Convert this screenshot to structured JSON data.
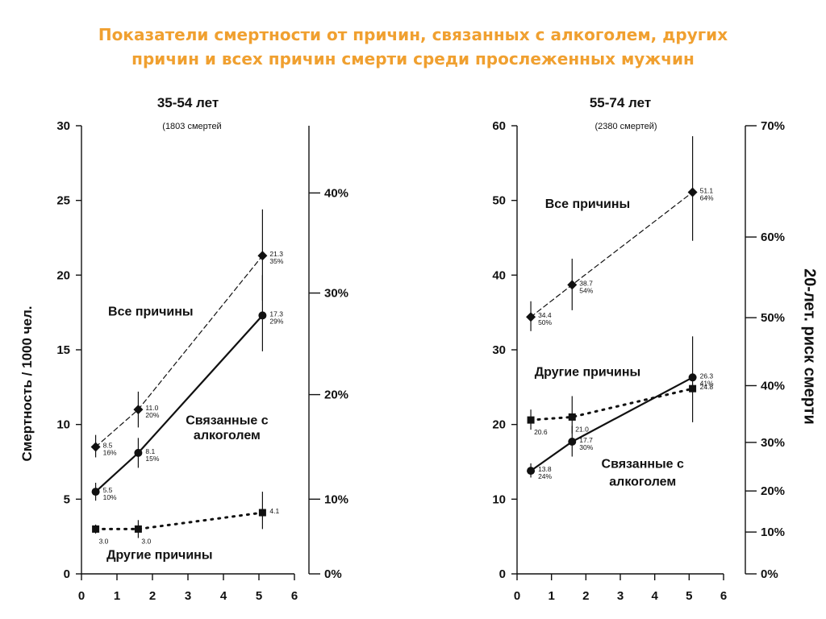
{
  "title_line1": "Показатели смертности от причин, связанных с алкоголем, других",
  "title_line2": "причин и всех причин смерти среди прослеженных мужчин",
  "ylabel_left": "Смертность / 1000 чел.",
  "ylabel_right": "20-лет. риск смерти",
  "colors": {
    "title": "#f0a030",
    "ink": "#111111"
  },
  "chart_data": [
    {
      "type": "line",
      "title": "35-54 лет",
      "subtitle": "(1803 смертей",
      "ylim": [
        0,
        30
      ],
      "yticks": [
        "0",
        "5",
        "10",
        "15",
        "20",
        "25",
        "30"
      ],
      "xlim": [
        0,
        6
      ],
      "xticks": [
        "0",
        "1",
        "2",
        "3",
        "4",
        "5",
        "6"
      ],
      "right_axis": {
        "labels": [
          "0%",
          "10%",
          "20%",
          "30%",
          "40%"
        ],
        "values": [
          0,
          5,
          12,
          18.8,
          25.5
        ]
      },
      "series": [
        {
          "name": "Все причины",
          "style": "dashed",
          "marker": "diamond",
          "points": [
            {
              "x": 0.4,
              "y": 8.5,
              "label": "8.5",
              "pct": "16%",
              "err": [
                7.8,
                9.3
              ]
            },
            {
              "x": 1.6,
              "y": 11.0,
              "label": "11.0",
              "pct": "20%",
              "err": [
                9.8,
                12.2
              ]
            },
            {
              "x": 5.1,
              "y": 21.3,
              "label": "21.3",
              "pct": "35%",
              "err": [
                18.3,
                24.4
              ]
            }
          ]
        },
        {
          "name": "Связанные с алкоголем",
          "style": "solid",
          "marker": "circle",
          "points": [
            {
              "x": 0.4,
              "y": 5.5,
              "label": "5.5",
              "pct": "10%",
              "err": [
                4.9,
                6.1
              ]
            },
            {
              "x": 1.6,
              "y": 8.1,
              "label": "8.1",
              "pct": "15%",
              "err": [
                7.1,
                9.1
              ]
            },
            {
              "x": 5.1,
              "y": 17.3,
              "label": "17.3",
              "pct": "29%",
              "err": [
                14.9,
                20.0
              ]
            }
          ]
        },
        {
          "name": "Другие причины",
          "style": "dotted",
          "marker": "square",
          "points": [
            {
              "x": 0.4,
              "y": 3.0,
              "label": "3.0",
              "err": [
                2.7,
                3.3
              ]
            },
            {
              "x": 1.6,
              "y": 3.0,
              "label": "3.0",
              "err": [
                2.4,
                3.6
              ]
            },
            {
              "x": 5.1,
              "y": 4.1,
              "label": "4.1",
              "err": [
                3.0,
                5.5
              ]
            }
          ]
        }
      ],
      "series_labels": [
        {
          "text": "Все причины",
          "x": 1.95,
          "y": 17.3
        },
        {
          "text": "Связанные с",
          "x": 4.1,
          "y": 10.0
        },
        {
          "text": "алкоголем",
          "x": 4.1,
          "y": 9.0
        },
        {
          "text": "Другие причины",
          "x": 2.2,
          "y": 1.0
        }
      ]
    },
    {
      "type": "line",
      "title": "55-74 лет",
      "subtitle": "(2380 смертей)",
      "ylim": [
        0,
        60
      ],
      "yticks": [
        "0",
        "10",
        "20",
        "30",
        "40",
        "50",
        "60"
      ],
      "xlim": [
        0,
        6
      ],
      "xticks": [
        "0",
        "1",
        "2",
        "3",
        "4",
        "5",
        "6"
      ],
      "right_axis": {
        "labels": [
          "0%",
          "10%",
          "20%",
          "30%",
          "40%",
          "50%",
          "60%",
          "70%"
        ],
        "values": [
          0,
          5.6,
          11.1,
          17.6,
          25.2,
          34.3,
          45.1,
          60
        ]
      },
      "series": [
        {
          "name": "Все причины",
          "style": "dashed",
          "marker": "diamond",
          "points": [
            {
              "x": 0.4,
              "y": 34.4,
              "label": "34.4",
              "pct": "50%",
              "err": [
                32.5,
                36.5
              ]
            },
            {
              "x": 1.6,
              "y": 38.7,
              "label": "38.7",
              "pct": "54%",
              "err": [
                35.3,
                42.2
              ]
            },
            {
              "x": 5.1,
              "y": 51.1,
              "label": "51.1",
              "pct": "64%",
              "err": [
                44.6,
                58.6
              ]
            }
          ]
        },
        {
          "name": "Другие причины",
          "style": "dotted",
          "marker": "square",
          "points": [
            {
              "x": 0.4,
              "y": 20.6,
              "label": "20.6",
              "err": [
                19.3,
                22.0
              ]
            },
            {
              "x": 1.6,
              "y": 21.0,
              "label": "21.0",
              "err": [
                18.8,
                23.8
              ]
            },
            {
              "x": 5.1,
              "y": 24.8,
              "label": "24.8"
            }
          ]
        },
        {
          "name": "Связанные с алкоголем",
          "style": "solid",
          "marker": "circle",
          "points": [
            {
              "x": 0.4,
              "y": 13.8,
              "label": "13.8",
              "pct": "24%",
              "err": [
                12.9,
                14.8
              ]
            },
            {
              "x": 1.6,
              "y": 17.7,
              "label": "17.7",
              "pct": "30%",
              "err": [
                15.7,
                19.8
              ]
            },
            {
              "x": 5.1,
              "y": 26.3,
              "label": "26.3",
              "pct": "41%",
              "err": [
                20.3,
                31.8
              ]
            }
          ]
        }
      ],
      "series_labels": [
        {
          "text": "Все причины",
          "x": 2.05,
          "y": 49.0
        },
        {
          "text": "Другие причины",
          "x": 2.05,
          "y": 26.5
        },
        {
          "text": "Связанные с",
          "x": 3.65,
          "y": 14.2
        },
        {
          "text": "алкоголем",
          "x": 3.65,
          "y": 11.8
        }
      ]
    }
  ]
}
